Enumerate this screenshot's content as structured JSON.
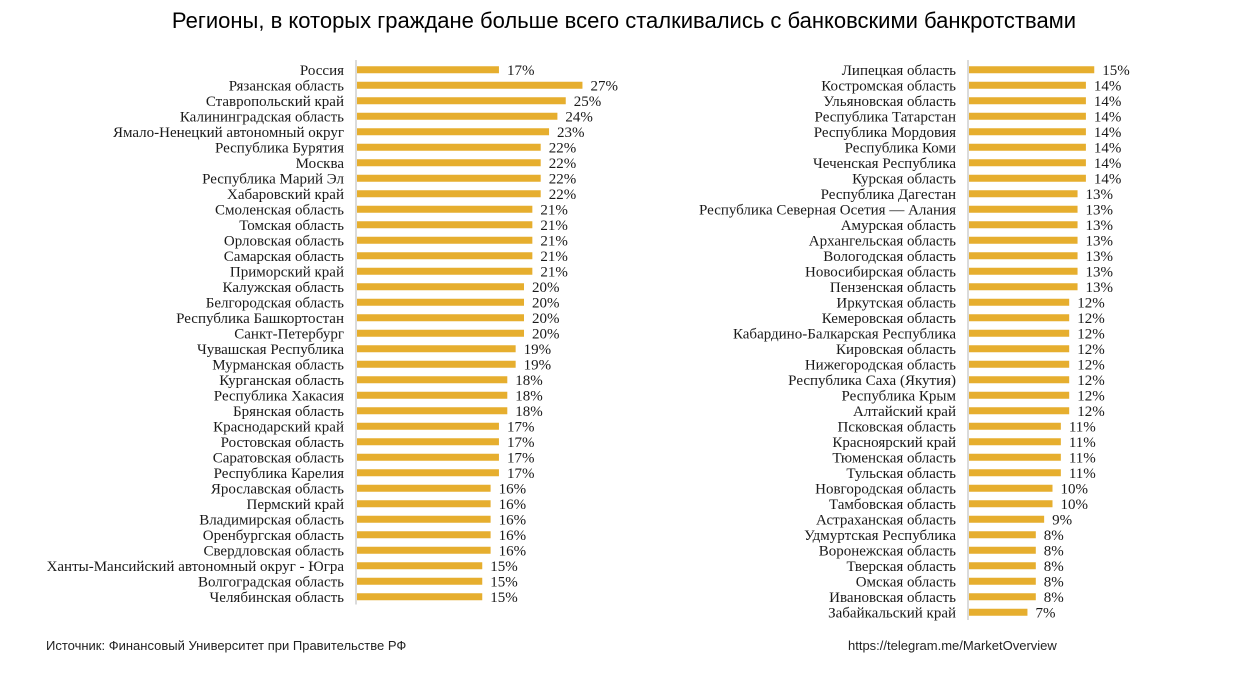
{
  "title": "Регионы, в которых граждане больше всего сталкивались с банковскими банкротствами",
  "footer": {
    "source": "Источник: Финансовый Университет при Правительстве РФ",
    "link": "https://telegram.me/MarketOverview"
  },
  "colors": {
    "bar": "#E6AE2E"
  },
  "chart_data": [
    {
      "type": "bar",
      "orientation": "horizontal",
      "value_suffix": "%",
      "categories": [
        "Россия",
        "Рязанская область",
        "Ставропольский край",
        "Калининградская область",
        "Ямало-Ненецкий автономный округ",
        "Республика Бурятия",
        "Москва",
        "Республика Марий Эл",
        "Хабаровский край",
        "Смоленская область",
        "Томская область",
        "Орловская область",
        "Самарская область",
        "Приморский край",
        "Калужская область",
        "Белгородская область",
        "Республика Башкортостан",
        "Санкт-Петербург",
        "Чувашская Республика",
        "Мурманская область",
        "Курганская область",
        "Республика Хакасия",
        "Брянская область",
        "Краснодарский край",
        "Ростовская область",
        "Саратовская область",
        "Республика Карелия",
        "Ярославская область",
        "Пермский край",
        "Владимирская область",
        "Оренбургская область",
        "Свердловская область",
        "Ханты-Мансийский автономный округ - Югра",
        "Волгоградская область",
        "Челябинская область"
      ],
      "values": [
        17,
        27,
        25,
        24,
        23,
        22,
        22,
        22,
        22,
        21,
        21,
        21,
        21,
        21,
        20,
        20,
        20,
        20,
        19,
        19,
        18,
        18,
        18,
        17,
        17,
        17,
        17,
        16,
        16,
        16,
        16,
        16,
        15,
        15,
        15
      ]
    },
    {
      "type": "bar",
      "orientation": "horizontal",
      "value_suffix": "%",
      "categories": [
        "Липецкая область",
        "Костромская область",
        "Ульяновская область",
        "Республика Татарстан",
        "Республика Мордовия",
        "Республика Коми",
        "Чеченская Республика",
        "Курская область",
        "Республика Дагестан",
        "Республика Северная Осетия — Алания",
        "Амурская область",
        "Архангельская область",
        "Вологодская область",
        "Новосибирская область",
        "Пензенская область",
        "Иркутская область",
        "Кемеровская область",
        "Кабардино-Балкарская Республика",
        "Кировская область",
        "Нижегородская область",
        "Республика Саха (Якутия)",
        "Республика Крым",
        "Алтайский край",
        "Псковская область",
        "Красноярский край",
        "Тюменская область",
        "Тульская область",
        "Новгородская область",
        "Тамбовская область",
        "Астраханская область",
        "Удмуртская Республика",
        "Воронежская область",
        "Тверская область",
        "Омская область",
        "Ивановская область",
        "Забайкальский край"
      ],
      "values": [
        15,
        14,
        14,
        14,
        14,
        14,
        14,
        14,
        13,
        13,
        13,
        13,
        13,
        13,
        13,
        12,
        12,
        12,
        12,
        12,
        12,
        12,
        12,
        11,
        11,
        11,
        11,
        10,
        10,
        9,
        8,
        8,
        8,
        8,
        8,
        7
      ]
    }
  ]
}
